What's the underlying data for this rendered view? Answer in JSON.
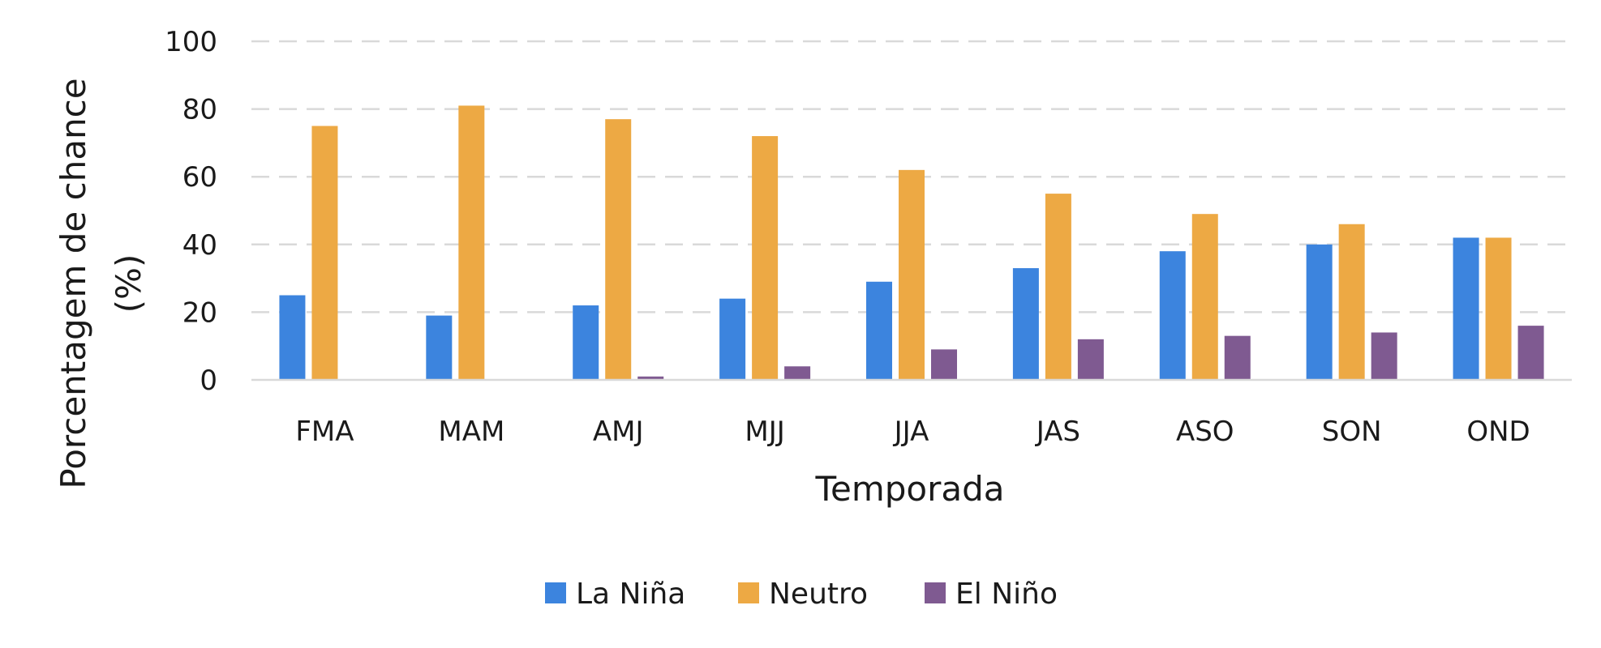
{
  "chart_data": {
    "type": "bar",
    "title": "",
    "xlabel": "Temporada",
    "ylabel_line1": "Porcentagem de chance",
    "ylabel_line2": "(%)",
    "ylim": [
      0,
      100
    ],
    "yticks": [
      0,
      20,
      40,
      60,
      80,
      100
    ],
    "grid": "horizontal-dashed",
    "legend_position": "bottom",
    "categories": [
      "FMA",
      "MAM",
      "AMJ",
      "MJJ",
      "JJA",
      "JAS",
      "ASO",
      "SON",
      "OND"
    ],
    "series": [
      {
        "name": "La Niña",
        "color": "#3c84de",
        "values": [
          25,
          19,
          22,
          24,
          29,
          33,
          38,
          40,
          42
        ]
      },
      {
        "name": "Neutro",
        "color": "#eda944",
        "values": [
          75,
          81,
          77,
          72,
          62,
          55,
          49,
          46,
          42
        ]
      },
      {
        "name": "El Niño",
        "color": "#7f5a91",
        "values": [
          0,
          0,
          1,
          4,
          9,
          12,
          13,
          14,
          16
        ]
      }
    ]
  }
}
